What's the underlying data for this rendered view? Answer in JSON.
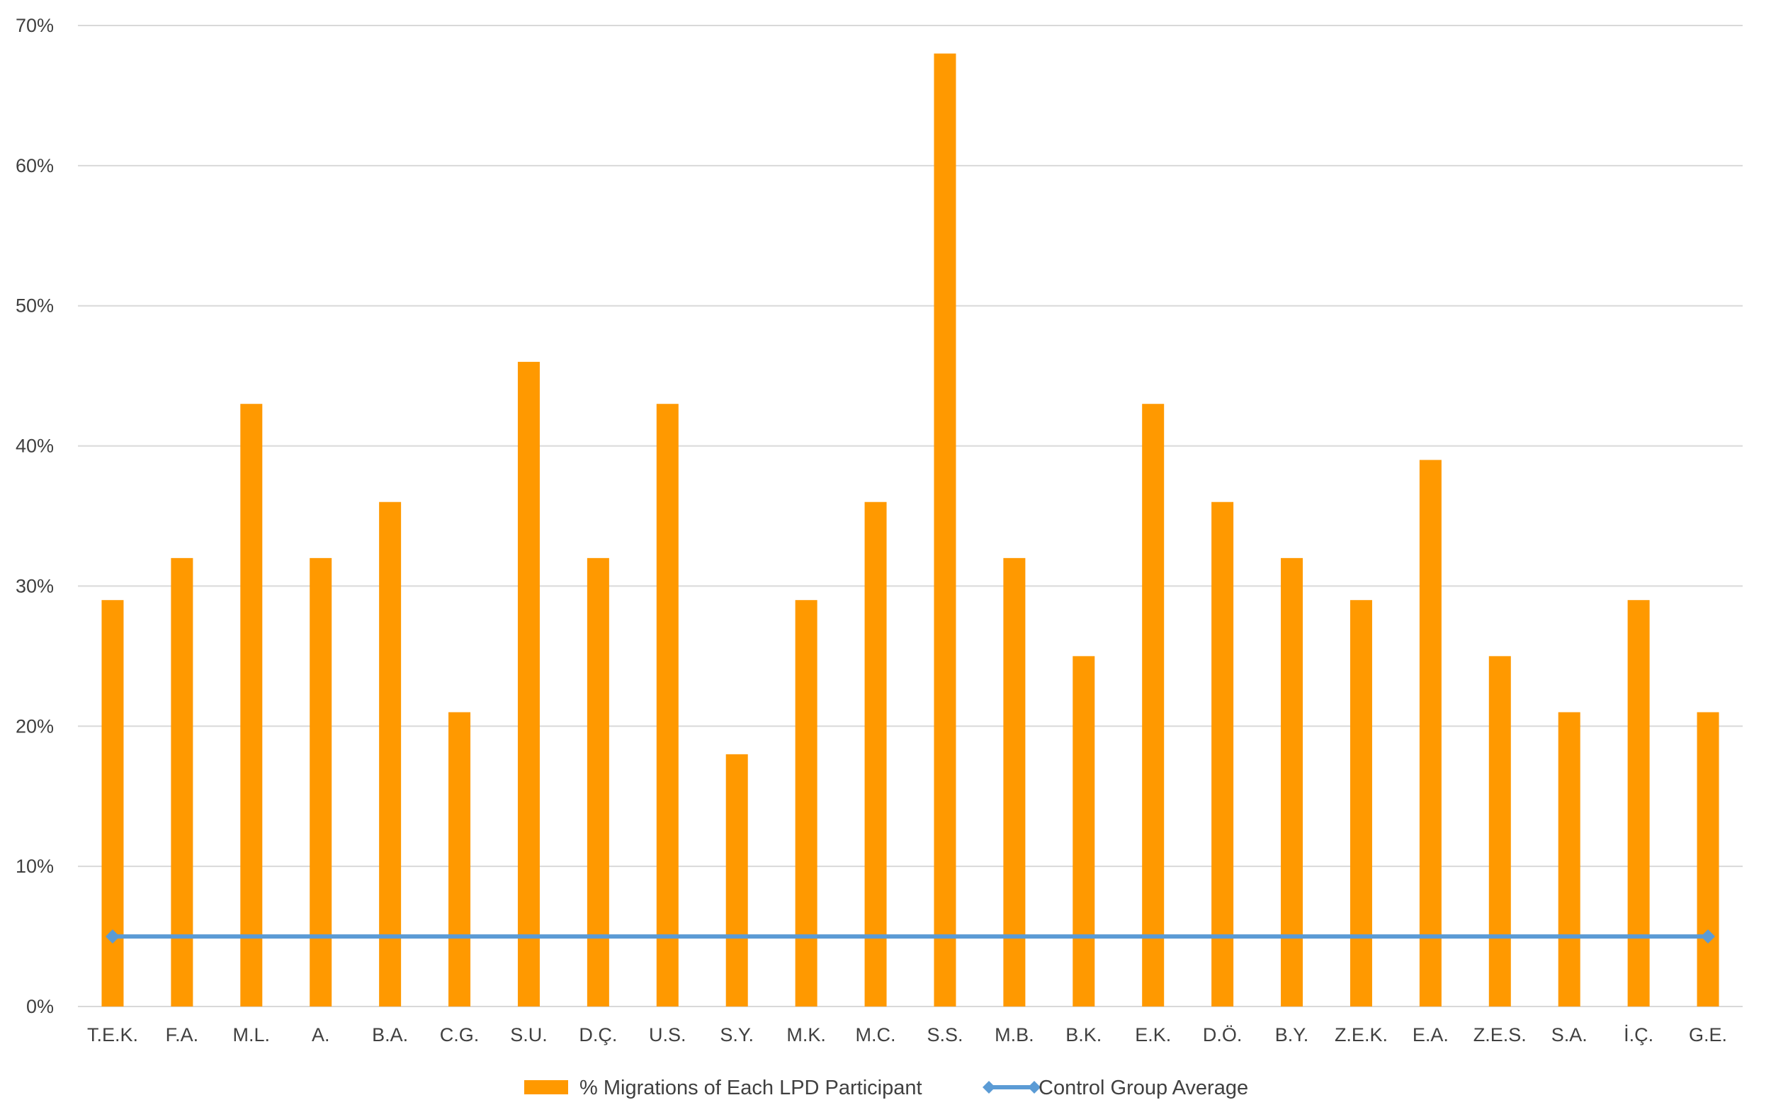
{
  "chart_data": {
    "type": "bar",
    "title": "",
    "xlabel": "",
    "ylabel": "",
    "ylim": [
      0,
      70
    ],
    "ytick_step": 10,
    "ytick_labels": [
      "0%",
      "10%",
      "20%",
      "30%",
      "40%",
      "50%",
      "60%",
      "70%"
    ],
    "y_unit": "%",
    "grid": true,
    "legend_position": "bottom",
    "categories": [
      "T.E.K.",
      "F.A.",
      "M.L.",
      "A.",
      "B.A.",
      "C.G.",
      "S.U.",
      "D.Ç.",
      "U.S.",
      "S.Y.",
      "M.K.",
      "M.C.",
      "S.S.",
      "M.B.",
      "B.K.",
      "E.K.",
      "D.Ö.",
      "B.Y.",
      "Z.E.K.",
      "E.A.",
      "Z.E.S.",
      "S.A.",
      "İ.Ç.",
      "G.E."
    ],
    "series": [
      {
        "name": "% Migrations of Each LPD Participant",
        "type": "bar",
        "color": "#ff9900",
        "values": [
          29,
          32,
          43,
          32,
          36,
          21,
          46,
          32,
          43,
          18,
          29,
          36,
          68,
          32,
          25,
          43,
          36,
          32,
          29,
          39,
          25,
          21,
          29,
          21
        ]
      },
      {
        "name": "Control Group Average",
        "type": "line",
        "color": "#5b9bd5",
        "marker": "diamond",
        "values": [
          5,
          5,
          5,
          5,
          5,
          5,
          5,
          5,
          5,
          5,
          5,
          5,
          5,
          5,
          5,
          5,
          5,
          5,
          5,
          5,
          5,
          5,
          5,
          5
        ]
      }
    ]
  }
}
